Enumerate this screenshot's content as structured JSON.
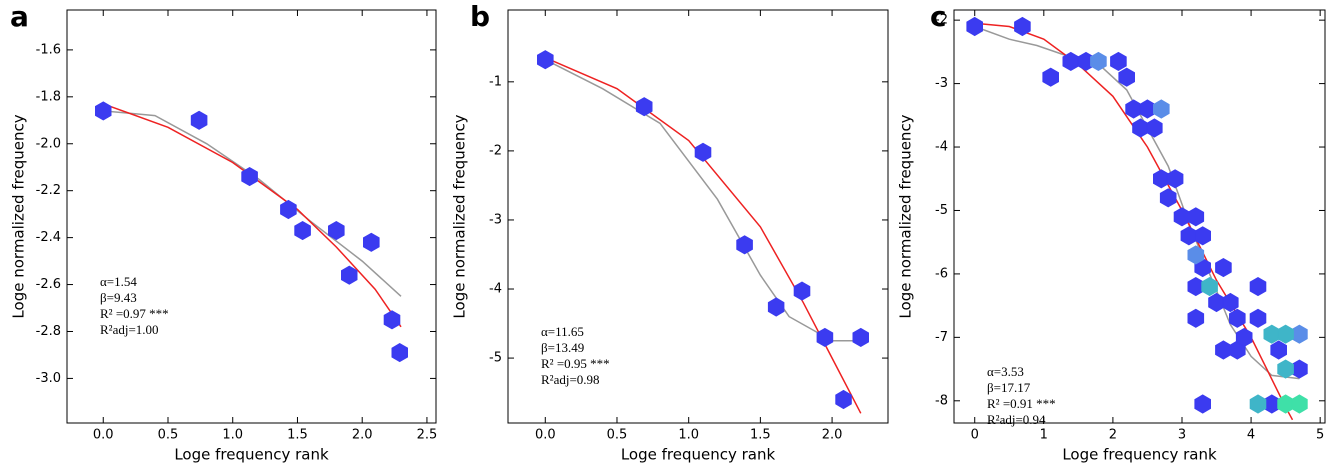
{
  "chart_data": [
    {
      "type": "scatter",
      "panel_label": "a",
      "xlabel": "Loge frequency rank",
      "ylabel": "Loge normalized frequency",
      "xlim": [
        -0.28,
        2.57
      ],
      "ylim": [
        -3.19,
        -1.43
      ],
      "xticks": [
        {
          "value": 0,
          "label": "0.0"
        },
        0.5,
        {
          "value": 1,
          "label": "1.0"
        },
        1.5,
        {
          "value": 2,
          "label": "2.0"
        },
        2.5
      ],
      "yticks": [
        -1.6,
        -1.8,
        {
          "value": -2,
          "label": "-2.0"
        },
        -2.2,
        -2.4,
        -2.6,
        -2.8,
        {
          "value": -3,
          "label": "-3.0"
        }
      ],
      "series": [
        {
          "mode": "hexagon",
          "color": "#3b3bf0",
          "x": [
            0,
            0.74,
            1.13,
            1.43,
            1.54,
            1.8,
            1.9,
            2.07,
            2.23,
            2.29
          ],
          "y": [
            -1.86,
            -1.9,
            -2.14,
            -2.28,
            -2.37,
            -2.37,
            -2.56,
            -2.42,
            -2.75,
            -2.89
          ]
        },
        {
          "mode": "line",
          "color": "#999999",
          "x": [
            0,
            0.4,
            0.8,
            1.2,
            1.6,
            2.0,
            2.3
          ],
          "y": [
            -1.86,
            -1.88,
            -2.0,
            -2.15,
            -2.33,
            -2.5,
            -2.65
          ]
        },
        {
          "mode": "line",
          "color": "#ee2222",
          "x": [
            0,
            0.5,
            1.0,
            1.5,
            1.8,
            2.1,
            2.3
          ],
          "y": [
            -1.83,
            -1.93,
            -2.08,
            -2.28,
            -2.44,
            -2.62,
            -2.78
          ]
        }
      ],
      "annotations": [
        "α=1.54",
        "β=9.43",
        "R² =0.97 ***",
        "R²adj=1.00"
      ]
    },
    {
      "type": "scatter",
      "panel_label": "b",
      "xlabel": "Loge frequency rank",
      "ylabel": "Loge normalized frequency",
      "xlim": [
        -0.26,
        2.39
      ],
      "ylim": [
        -5.94,
        0.04
      ],
      "xticks": [
        {
          "value": 0,
          "label": "0.0"
        },
        0.5,
        {
          "value": 1,
          "label": "1.0"
        },
        1.5,
        {
          "value": 2,
          "label": "2.0"
        }
      ],
      "yticks": [
        -1,
        -2,
        -3,
        -4,
        -5
      ],
      "series": [
        {
          "mode": "hexagon",
          "color": "#3b3bf0",
          "x": [
            0,
            0.69,
            1.1,
            1.39,
            1.61,
            1.79,
            1.95,
            2.08,
            2.2
          ],
          "y": [
            -0.68,
            -1.36,
            -2.02,
            -3.36,
            -4.26,
            -4.03,
            -4.7,
            -5.6,
            -4.7
          ]
        },
        {
          "mode": "line",
          "color": "#999999",
          "x": [
            0,
            0.4,
            0.8,
            1.2,
            1.5,
            1.7,
            2.0,
            2.2
          ],
          "y": [
            -0.68,
            -1.1,
            -1.6,
            -2.7,
            -3.8,
            -4.4,
            -4.75,
            -4.75
          ]
        },
        {
          "mode": "line",
          "color": "#ee2222",
          "x": [
            0,
            0.5,
            1.0,
            1.5,
            1.8,
            2.0,
            2.2
          ],
          "y": [
            -0.65,
            -1.1,
            -1.85,
            -3.1,
            -4.2,
            -5.0,
            -5.8
          ]
        }
      ],
      "annotations": [
        "α=11.65",
        "β=13.49",
        "R² =0.95 ***",
        "R²adj=0.98"
      ]
    },
    {
      "type": "scatter",
      "panel_label": "c",
      "xlabel": "Loge frequency rank",
      "ylabel": "Loge normalized frequency",
      "xlim": [
        -0.3,
        5.07
      ],
      "ylim": [
        -8.35,
        -1.84
      ],
      "xticks": [
        0,
        1,
        2,
        3,
        4,
        5
      ],
      "yticks": [
        -2,
        -3,
        -4,
        -5,
        -6,
        -7,
        -8
      ],
      "series": [
        {
          "mode": "hexagon",
          "color": "#3b3bf0",
          "x": [
            0,
            0.69,
            1.1,
            1.39,
            1.61,
            2.08,
            2.2,
            2.3,
            2.4,
            2.5,
            2.6,
            2.7,
            2.8,
            2.9,
            3.0,
            3.1,
            3.2,
            3.3,
            3.3,
            3.2,
            3.5,
            3.6,
            3.7,
            3.2,
            3.8,
            3.6,
            3.8,
            3.9,
            4.1,
            4.1,
            4.4,
            4.7,
            3.3,
            4.3
          ],
          "y": [
            -2.1,
            -2.1,
            -2.9,
            -2.65,
            -2.65,
            -2.65,
            -2.9,
            -3.4,
            -3.7,
            -3.4,
            -3.7,
            -4.5,
            -4.8,
            -4.5,
            -5.1,
            -5.4,
            -5.1,
            -5.4,
            -5.9,
            -6.2,
            -6.45,
            -5.9,
            -6.45,
            -6.7,
            -6.7,
            -7.2,
            -7.2,
            -7.0,
            -6.2,
            -6.7,
            -7.2,
            -7.5,
            -8.05,
            -8.05
          ]
        },
        {
          "mode": "hexagon",
          "color": "#5a8de8",
          "x": [
            1.79,
            2.7,
            3.2,
            4.7
          ],
          "y": [
            -2.65,
            -3.4,
            -5.7,
            -6.95
          ]
        },
        {
          "mode": "hexagon",
          "color": "#3fb5c8",
          "x": [
            3.4,
            4.3,
            4.5,
            4.5,
            4.1
          ],
          "y": [
            -6.2,
            -6.95,
            -6.95,
            -7.5,
            -8.05
          ]
        },
        {
          "mode": "hexagon",
          "color": "#3fe0a8",
          "x": [
            4.5,
            4.7
          ],
          "y": [
            -8.05,
            -8.05
          ]
        },
        {
          "mode": "line",
          "color": "#999999",
          "x": [
            0,
            0.5,
            0.9,
            1.3,
            1.8,
            2.2,
            2.5,
            2.8,
            3.1,
            3.4,
            3.7,
            4.0,
            4.3,
            4.7
          ],
          "y": [
            -2.1,
            -2.3,
            -2.4,
            -2.55,
            -2.7,
            -3.1,
            -3.7,
            -4.3,
            -5.2,
            -6.0,
            -6.8,
            -7.3,
            -7.6,
            -7.65
          ]
        },
        {
          "mode": "line",
          "color": "#ee2222",
          "x": [
            0,
            0.5,
            1,
            1.5,
            2,
            2.5,
            3,
            3.5,
            4,
            4.5,
            4.6
          ],
          "y": [
            -2.05,
            -2.1,
            -2.3,
            -2.7,
            -3.2,
            -4.0,
            -5.0,
            -6.1,
            -7.0,
            -8.1,
            -8.3
          ]
        }
      ],
      "annotations": [
        "α=3.53",
        "β=17.17",
        "R² =0.91 ***",
        "R²adj=0.94"
      ]
    }
  ]
}
